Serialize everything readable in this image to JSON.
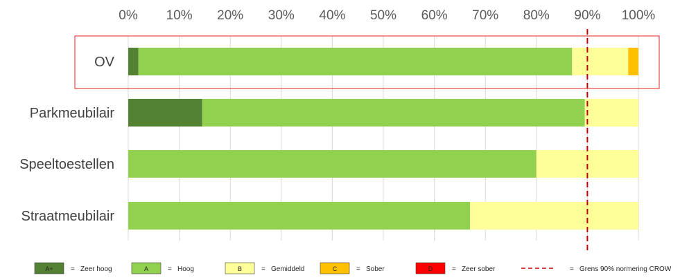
{
  "chart_data": {
    "type": "bar",
    "orientation": "horizontal",
    "stacked": true,
    "title": "",
    "xlabel": "",
    "ylabel": "",
    "xlim": [
      0,
      100
    ],
    "x_ticks": [
      "0%",
      "10%",
      "20%",
      "30%",
      "40%",
      "50%",
      "60%",
      "70%",
      "80%",
      "90%",
      "100%"
    ],
    "x_tick_position": "top",
    "grid": true,
    "categories": [
      "OV",
      "Parkmeubilair",
      "Speeltoestellen",
      "Straatmeubilair"
    ],
    "series": [
      {
        "key": "A+",
        "name": "Zeer hoog",
        "color": "#548235",
        "values": [
          2,
          14.5,
          0,
          0
        ]
      },
      {
        "key": "A",
        "name": "Hoog",
        "color": "#92d050",
        "values": [
          85,
          75,
          80,
          67
        ]
      },
      {
        "key": "B",
        "name": "Gemiddeld",
        "color": "#ffff99",
        "values": [
          11,
          10.5,
          20,
          33
        ]
      },
      {
        "key": "C",
        "name": "Sober",
        "color": "#ffc000",
        "values": [
          2,
          0,
          0,
          0
        ]
      },
      {
        "key": "D",
        "name": "Zeer sober",
        "color": "#ff0000",
        "values": [
          0,
          0,
          0,
          0
        ]
      }
    ],
    "reference_line": {
      "value": 90,
      "label": "Grens 90% normering CROW",
      "color": "#c00000",
      "style": "dashed"
    },
    "highlight": {
      "category": "OV",
      "color": "#e02020"
    },
    "legend": {
      "placement": "bottom",
      "separator": "="
    }
  }
}
